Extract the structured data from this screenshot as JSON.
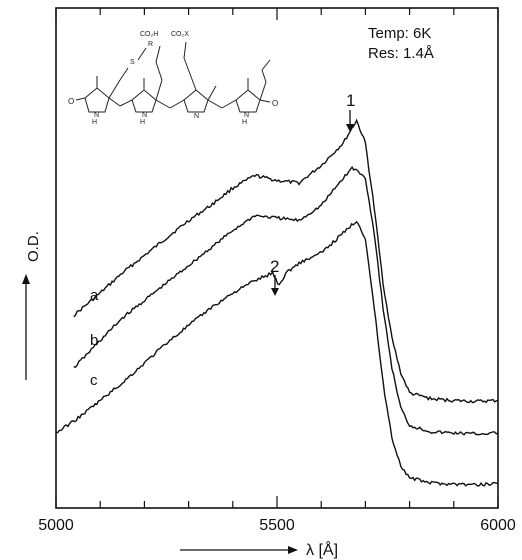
{
  "chart_data": {
    "type": "line",
    "xlabel": "λ [Å]",
    "ylabel": "O.D.",
    "xlim": [
      5000,
      6000
    ],
    "x_ticks": [
      {
        "value": 5000,
        "label": "5000"
      },
      {
        "value": 5500,
        "label": "5500"
      },
      {
        "value": 6000,
        "label": "6000"
      }
    ],
    "grid": false,
    "annotations": {
      "temp": "Temp: 6K",
      "res": "Res: 1.4Å",
      "marker_1": "1",
      "marker_2": "2"
    },
    "series": [
      {
        "name": "a",
        "x": [
          5040,
          5100,
          5150,
          5200,
          5250,
          5300,
          5350,
          5400,
          5450,
          5500,
          5550,
          5600,
          5650,
          5680,
          5700,
          5720,
          5740,
          5760,
          5780,
          5800,
          5850,
          5900,
          5950,
          6000
        ],
        "y": [
          0.385,
          0.43,
          0.47,
          0.505,
          0.54,
          0.575,
          0.605,
          0.64,
          0.665,
          0.655,
          0.65,
          0.685,
          0.73,
          0.775,
          0.73,
          0.6,
          0.45,
          0.34,
          0.27,
          0.23,
          0.218,
          0.215,
          0.213,
          0.215
        ]
      },
      {
        "name": "b",
        "x": [
          5040,
          5100,
          5150,
          5200,
          5250,
          5300,
          5350,
          5400,
          5450,
          5500,
          5550,
          5600,
          5650,
          5670,
          5680,
          5700,
          5720,
          5740,
          5760,
          5780,
          5800,
          5850,
          5900,
          5950,
          6000
        ],
        "y": [
          0.28,
          0.335,
          0.38,
          0.415,
          0.45,
          0.485,
          0.52,
          0.555,
          0.585,
          0.58,
          0.575,
          0.605,
          0.66,
          0.68,
          0.675,
          0.66,
          0.55,
          0.4,
          0.28,
          0.2,
          0.165,
          0.152,
          0.15,
          0.148,
          0.15
        ]
      },
      {
        "name": "c",
        "x": [
          5000,
          5050,
          5100,
          5150,
          5200,
          5250,
          5300,
          5350,
          5400,
          5450,
          5490,
          5505,
          5520,
          5550,
          5600,
          5650,
          5680,
          5700,
          5720,
          5740,
          5760,
          5780,
          5800,
          5850,
          5900,
          5950,
          6000
        ],
        "y": [
          0.15,
          0.18,
          0.215,
          0.25,
          0.29,
          0.33,
          0.365,
          0.4,
          0.43,
          0.455,
          0.47,
          0.445,
          0.47,
          0.49,
          0.51,
          0.55,
          0.575,
          0.54,
          0.4,
          0.25,
          0.14,
          0.085,
          0.06,
          0.05,
          0.048,
          0.046,
          0.05
        ]
      }
    ]
  }
}
